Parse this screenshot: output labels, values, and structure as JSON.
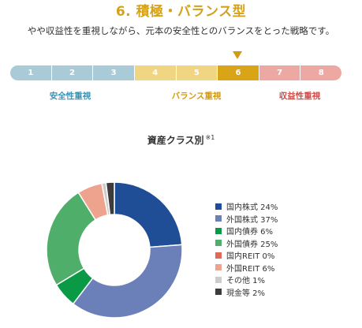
{
  "header": {
    "title": "6. 積極・バランス型",
    "description": "やや収益性を重視しながら、元本の安全性とのバランスをとった戦略です。"
  },
  "risk_scale": {
    "selected": "6",
    "levels": [
      {
        "label": "1",
        "color": "#a9cbd8"
      },
      {
        "label": "2",
        "color": "#a9cbd8"
      },
      {
        "label": "3",
        "color": "#a9cbd8"
      },
      {
        "label": "4",
        "color": "#f0d583"
      },
      {
        "label": "5",
        "color": "#f0d583"
      },
      {
        "label": "6",
        "color": "#d9a415"
      },
      {
        "label": "7",
        "color": "#eea8a4"
      },
      {
        "label": "8",
        "color": "#eea8a4"
      }
    ],
    "groups": [
      {
        "label": "安全性重視",
        "color": "#3b93b5"
      },
      {
        "label": "バランス重視",
        "color": "#d49a10"
      },
      {
        "label": "収益性重視",
        "color": "#d24a44"
      }
    ]
  },
  "chart_data": {
    "type": "pie",
    "title": "資産クラス別",
    "title_note": "※1",
    "unit": "%",
    "donut": true,
    "legend_position": "right",
    "slices": [
      {
        "label": "国内株式",
        "value": 24,
        "color": "#1f4e96"
      },
      {
        "label": "外国株式",
        "value": 37,
        "color": "#6b7fb8"
      },
      {
        "label": "国内債券",
        "value": 6,
        "color": "#0a9a45"
      },
      {
        "label": "外国債券",
        "value": 25,
        "color": "#4fae6a"
      },
      {
        "label": "国内REIT",
        "value": 0,
        "color": "#e06a58"
      },
      {
        "label": "外国REIT",
        "value": 6,
        "color": "#eea38e"
      },
      {
        "label": "その他",
        "value": 1,
        "color": "#cccccc"
      },
      {
        "label": "現金等",
        "value": 2,
        "color": "#3c3c3c"
      }
    ]
  }
}
